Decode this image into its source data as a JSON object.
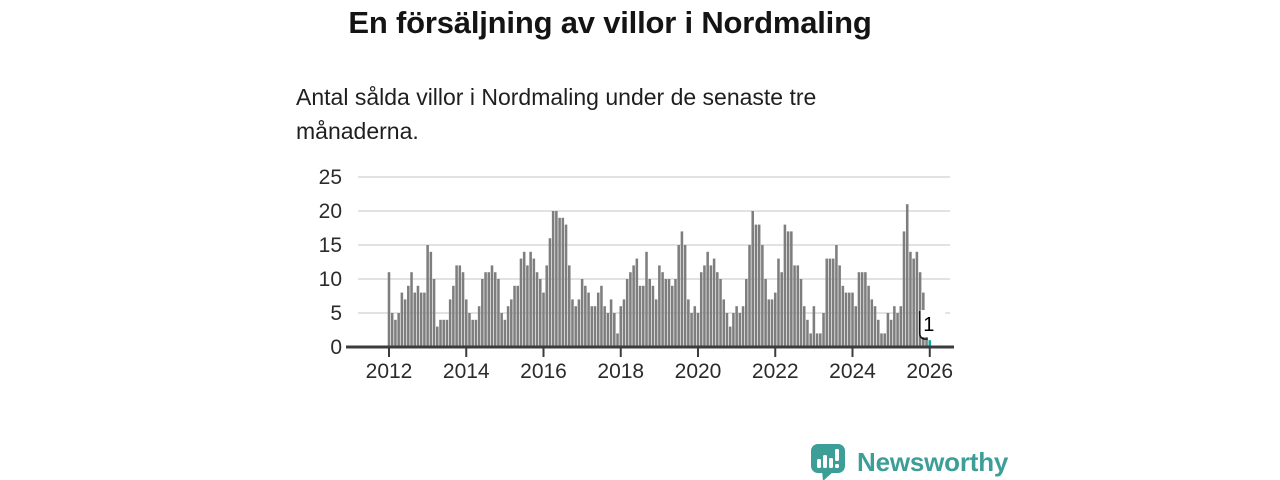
{
  "header": {
    "title": "En försäljning av villor i Nordmaling",
    "subtitle": "Antal sålda villor i Nordmaling under de senaste tre månaderna."
  },
  "chart_data": {
    "type": "bar",
    "title": "En försäljning av villor i Nordmaling",
    "subtitle": "Antal sålda villor i Nordmaling under de senaste tre månaderna.",
    "x_start_year": 2012,
    "x_tick_years": [
      2012,
      2014,
      2016,
      2018,
      2020,
      2022,
      2024,
      2026
    ],
    "yticks": [
      0,
      5,
      10,
      15,
      20,
      25
    ],
    "ylim": [
      0,
      25
    ],
    "grid": true,
    "legend": "none",
    "bar_color": "#7e7e7e",
    "highlight_color": "#0ca79c",
    "monthly_values": [
      11,
      5,
      4,
      5,
      8,
      7,
      9,
      11,
      8,
      9,
      8,
      8,
      15,
      14,
      10,
      3,
      4,
      4,
      4,
      7,
      9,
      12,
      12,
      11,
      7,
      5,
      4,
      4,
      6,
      10,
      11,
      11,
      12,
      11,
      10,
      5,
      4,
      6,
      7,
      9,
      9,
      13,
      14,
      12,
      14,
      13,
      11,
      10,
      8,
      12,
      16,
      20,
      20,
      19,
      19,
      18,
      12,
      7,
      6,
      7,
      10,
      9,
      8,
      6,
      6,
      8,
      9,
      6,
      5,
      7,
      5,
      2,
      6,
      7,
      10,
      11,
      12,
      13,
      9,
      9,
      14,
      10,
      9,
      7,
      12,
      11,
      10,
      10,
      9,
      10,
      15,
      17,
      15,
      7,
      5,
      6,
      5,
      11,
      12,
      14,
      12,
      13,
      11,
      10,
      7,
      5,
      3,
      5,
      6,
      5,
      6,
      10,
      15,
      20,
      18,
      18,
      15,
      10,
      7,
      7,
      8,
      13,
      11,
      18,
      17,
      17,
      12,
      12,
      10,
      6,
      4,
      2,
      6,
      2,
      2,
      5,
      13,
      13,
      13,
      15,
      12,
      9,
      8,
      8,
      8,
      6,
      11,
      11,
      11,
      9,
      7,
      6,
      4,
      2,
      2,
      5,
      4,
      6,
      5,
      6,
      17,
      21,
      14,
      13,
      14,
      11,
      8,
      5,
      1
    ],
    "highlight": {
      "index": 168,
      "value": 1,
      "label": "1"
    }
  },
  "branding": {
    "label": "Newsworthy",
    "color": "#3d9e98",
    "icon": "newsworthy-chart-bubble-logo"
  }
}
